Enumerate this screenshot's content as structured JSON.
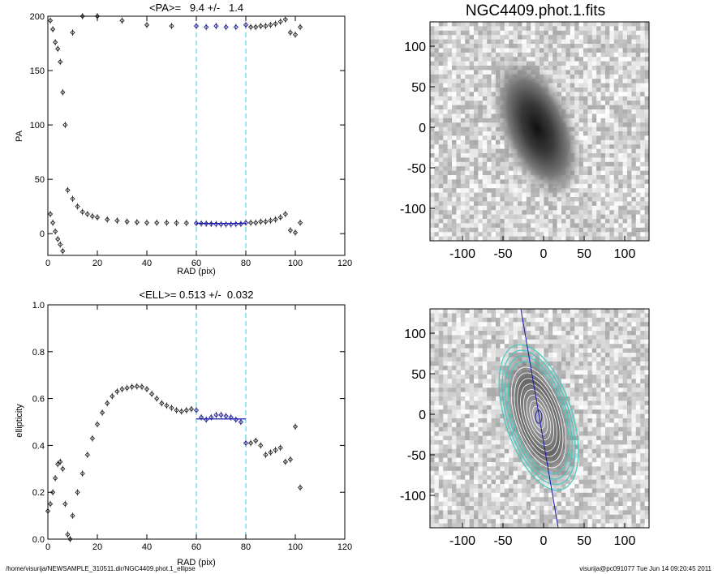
{
  "chart_data": [
    {
      "type": "scatter",
      "title": "<PA>=   9.4 +/-   1.4",
      "xlabel": "RAD (pix)",
      "ylabel": "PA",
      "xlim": [
        0,
        120
      ],
      "ylim": [
        -20,
        200
      ],
      "xticks": [
        "0",
        "20",
        "40",
        "60",
        "80",
        "100",
        "120"
      ],
      "yticks": [
        "0",
        "50",
        "100",
        "150",
        "200"
      ],
      "vlines": [
        60,
        80
      ],
      "fit": {
        "x": [
          60,
          80
        ],
        "y": 9.4
      },
      "series": [
        {
          "values": [
            [
              1,
              196
            ],
            [
              2,
              188
            ],
            [
              3,
              176
            ],
            [
              4,
              170
            ],
            [
              5,
              158
            ],
            [
              6,
              130
            ],
            [
              7,
              100
            ],
            [
              8,
              40
            ],
            [
              10,
              32
            ],
            [
              12,
              25
            ],
            [
              14,
              20
            ],
            [
              16,
              18
            ],
            [
              18,
              16
            ],
            [
              20,
              15
            ],
            [
              24,
              13
            ],
            [
              28,
              12
            ],
            [
              32,
              11
            ],
            [
              36,
              10.5
            ],
            [
              40,
              10
            ],
            [
              44,
              10
            ],
            [
              48,
              10
            ],
            [
              52,
              9.8
            ],
            [
              56,
              9.7
            ],
            [
              60,
              9.6
            ],
            [
              62,
              9.4
            ],
            [
              64,
              9.2
            ],
            [
              66,
              9.0
            ],
            [
              68,
              8.8
            ],
            [
              70,
              8.6
            ],
            [
              72,
              8.5
            ],
            [
              74,
              8.6
            ],
            [
              76,
              8.8
            ],
            [
              78,
              9
            ],
            [
              80,
              10
            ],
            [
              82,
              10
            ],
            [
              84,
              10
            ],
            [
              86,
              11
            ],
            [
              88,
              11
            ],
            [
              90,
              12
            ],
            [
              92,
              13
            ],
            [
              94,
              15
            ],
            [
              96,
              18
            ],
            [
              98,
              3
            ],
            [
              100,
              1
            ],
            [
              102,
              10
            ]
          ]
        },
        {
          "values": [
            [
              10,
              185
            ],
            [
              14,
              200
            ],
            [
              20,
              200
            ],
            [
              30,
              196
            ],
            [
              40,
              192
            ],
            [
              50,
              191
            ],
            [
              60,
              191
            ],
            [
              64,
              190
            ],
            [
              68,
              191
            ],
            [
              72,
              190
            ],
            [
              76,
              190
            ],
            [
              80,
              192
            ],
            [
              82,
              190
            ],
            [
              84,
              190
            ],
            [
              86,
              191
            ],
            [
              88,
              191
            ],
            [
              90,
              192
            ],
            [
              92,
              193
            ],
            [
              94,
              195
            ],
            [
              96,
              197
            ],
            [
              98,
              185
            ],
            [
              100,
              183
            ],
            [
              102,
              190
            ]
          ]
        },
        {
          "values": [
            [
              1,
              18
            ],
            [
              2,
              10
            ],
            [
              3,
              2
            ],
            [
              4,
              -5
            ],
            [
              5,
              -10
            ],
            [
              6,
              -16
            ]
          ]
        }
      ]
    },
    {
      "type": "scatter",
      "title": "<ELL>= 0.513 +/-  0.032",
      "xlabel": "RAD (pix)",
      "ylabel": "ellipticity",
      "xlim": [
        0,
        120
      ],
      "ylim": [
        0.0,
        1.0
      ],
      "xticks": [
        "0",
        "20",
        "40",
        "60",
        "80",
        "100",
        "120"
      ],
      "yticks": [
        "0.0",
        "0.2",
        "0.4",
        "0.6",
        "0.8",
        "1.0"
      ],
      "vlines": [
        60,
        80
      ],
      "fit": {
        "x": [
          60,
          80
        ],
        "y": 0.513
      },
      "series": [
        {
          "values": [
            [
              0,
              0.12
            ],
            [
              1,
              0.15
            ],
            [
              2,
              0.2
            ],
            [
              3,
              0.26
            ],
            [
              4,
              0.32
            ],
            [
              5,
              0.33
            ],
            [
              6,
              0.3
            ],
            [
              7,
              0.15
            ],
            [
              8,
              0.02
            ],
            [
              9,
              0.0
            ],
            [
              10,
              0.1
            ],
            [
              12,
              0.2
            ],
            [
              14,
              0.28
            ],
            [
              16,
              0.36
            ],
            [
              18,
              0.43
            ],
            [
              20,
              0.49
            ],
            [
              22,
              0.54
            ],
            [
              24,
              0.58
            ],
            [
              26,
              0.61
            ],
            [
              28,
              0.63
            ],
            [
              30,
              0.64
            ],
            [
              32,
              0.645
            ],
            [
              34,
              0.65
            ],
            [
              36,
              0.652
            ],
            [
              38,
              0.65
            ],
            [
              40,
              0.64
            ],
            [
              42,
              0.62
            ],
            [
              44,
              0.6
            ],
            [
              46,
              0.58
            ],
            [
              48,
              0.57
            ],
            [
              50,
              0.56
            ],
            [
              52,
              0.55
            ],
            [
              54,
              0.545
            ],
            [
              56,
              0.55
            ],
            [
              58,
              0.555
            ],
            [
              60,
              0.55
            ],
            [
              62,
              0.52
            ],
            [
              64,
              0.51
            ],
            [
              66,
              0.52
            ],
            [
              68,
              0.53
            ],
            [
              70,
              0.53
            ],
            [
              72,
              0.525
            ],
            [
              74,
              0.52
            ],
            [
              76,
              0.51
            ],
            [
              78,
              0.5
            ],
            [
              80,
              0.41
            ],
            [
              82,
              0.41
            ],
            [
              84,
              0.42
            ],
            [
              86,
              0.4
            ],
            [
              88,
              0.36
            ],
            [
              90,
              0.37
            ],
            [
              92,
              0.38
            ],
            [
              94,
              0.39
            ],
            [
              96,
              0.33
            ],
            [
              98,
              0.34
            ],
            [
              100,
              0.48
            ],
            [
              102,
              0.22
            ]
          ]
        }
      ]
    }
  ],
  "image_panels": [
    {
      "title": "NGC4409.phot.1.fits",
      "xticks": [
        "-100",
        "-50",
        "0",
        "50",
        "100"
      ],
      "yticks": [
        "100",
        "50",
        "0",
        "-50",
        "-100"
      ]
    },
    {
      "title": "",
      "xticks": [
        "-100",
        "-50",
        "0",
        "50",
        "100"
      ],
      "yticks": [
        "100",
        "50",
        "0",
        "-50",
        "-100"
      ]
    }
  ],
  "colors": {
    "vline": "#33ccdd",
    "fit": "#1a1aaa",
    "contour": "#44c8c0",
    "axis": "#000000"
  },
  "footer": {
    "left": "/home/visurija/NEWSAMPLE_310511.dir/NGC4409.phot.1_ellipse",
    "right": "visurija@pc091077  Tue Jun 14 09:20:45 2011"
  }
}
